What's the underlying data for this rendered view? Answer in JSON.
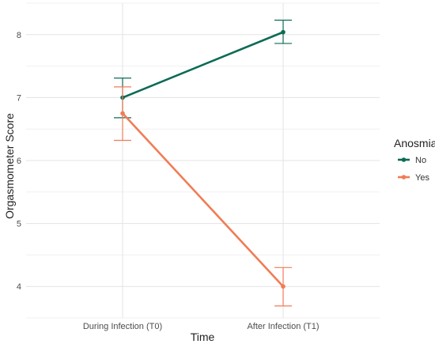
{
  "chart_data": {
    "type": "line",
    "title": "",
    "xlabel": "Time",
    "ylabel": "Orgasmometer Score",
    "categories": [
      "During Infection (T0)",
      "After Infection (T1)"
    ],
    "ylim": [
      3.5,
      8.5
    ],
    "yticks": [
      4,
      5,
      6,
      7,
      8
    ],
    "grid": true,
    "legend": {
      "title": "Anosmia",
      "position": "right"
    },
    "series": [
      {
        "name": "No",
        "color": "#0d6b55",
        "values": [
          7.0,
          8.04
        ],
        "error_low": [
          6.68,
          7.86
        ],
        "error_high": [
          7.31,
          8.23
        ]
      },
      {
        "name": "Yes",
        "color": "#f07c55",
        "values": [
          6.75,
          4.0
        ],
        "error_low": [
          6.32,
          3.69
        ],
        "error_high": [
          7.17,
          4.3
        ]
      }
    ]
  }
}
